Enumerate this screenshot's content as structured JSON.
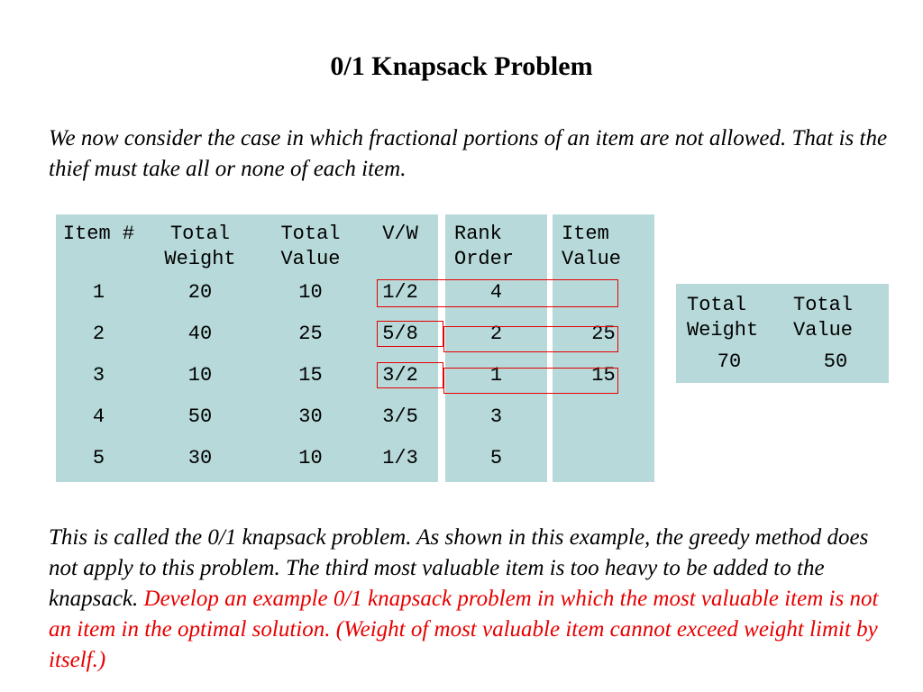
{
  "slide": {
    "title": "0/1 Knapsack Problem",
    "intro": "We now consider the case in which fractional portions of an item are not allowed. That is the thief must take all or none of each item.",
    "closing_black": "This is called the 0/1 knapsack problem.  As shown in this example, the greedy method does not apply to this problem. The third most valuable item is too heavy to be added to the knapsack.  ",
    "closing_red": "Develop an example 0/1 knapsack problem in which the most valuable item is not an item in the optimal solution. (Weight of most valuable item cannot exceed weight limit by itself.)"
  },
  "main_table": {
    "headers": {
      "item": "Item #",
      "weight_1": "Total",
      "weight_2": "Weight",
      "value_1": "Total",
      "value_2": "Value",
      "vw": "V/W"
    },
    "rows": [
      {
        "item": "1",
        "weight": "20",
        "value": "10",
        "vw": "1/2"
      },
      {
        "item": "2",
        "weight": "40",
        "value": "25",
        "vw": "5/8"
      },
      {
        "item": "3",
        "weight": "10",
        "value": "15",
        "vw": "3/2"
      },
      {
        "item": "4",
        "weight": "50",
        "value": "30",
        "vw": "3/5"
      },
      {
        "item": "5",
        "weight": "30",
        "value": "10",
        "vw": "1/3"
      }
    ]
  },
  "rank_table": {
    "header_1": "Rank",
    "header_2": "Order",
    "rows": [
      "4",
      "2",
      "1",
      "3",
      "5"
    ]
  },
  "item_value_table": {
    "header_1": "Item",
    "header_2": "Value",
    "rows": [
      "",
      "25",
      "15",
      "",
      ""
    ]
  },
  "summary_table": {
    "weight_header_1": "Total",
    "weight_header_2": "Weight",
    "value_header_1": "Total",
    "value_header_2": "Value",
    "weight": "70",
    "value": "50"
  },
  "colors": {
    "panel_background": "#b7d9d9",
    "highlight_border": "#e60000",
    "red_text": "#e60000",
    "body_text": "#000000",
    "slide_background": "#ffffff"
  }
}
